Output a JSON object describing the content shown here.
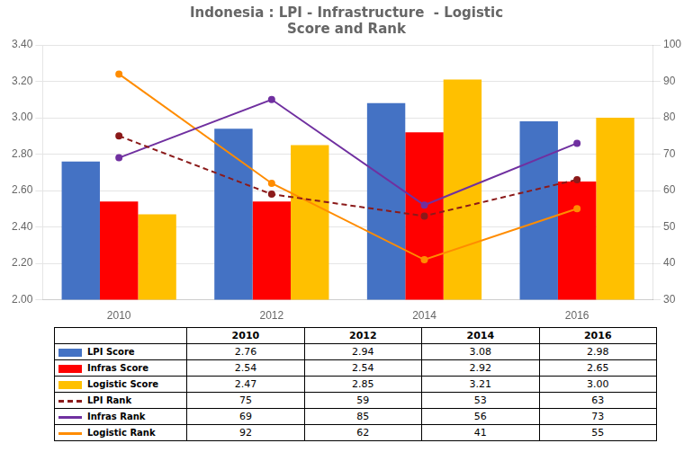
{
  "chart_data": {
    "type": "bar",
    "title": "Indonesia : LPI - Infrastructure  - Logistic\nScore and Rank",
    "categories": [
      "2010",
      "2012",
      "2014",
      "2016"
    ],
    "series": [
      {
        "name": "LPI Score",
        "type": "bar",
        "color": "#4472C4",
        "values": [
          2.76,
          2.94,
          3.08,
          2.98
        ],
        "value_labels": [
          "2.76",
          "2.94",
          "3.08",
          "2.98"
        ]
      },
      {
        "name": "Infras Score",
        "type": "bar",
        "color": "#FF0000",
        "values": [
          2.54,
          2.54,
          2.92,
          2.65
        ],
        "value_labels": [
          "2.54",
          "2.54",
          "2.92",
          "2.65"
        ]
      },
      {
        "name": "Logistic Score",
        "type": "bar",
        "color": "#FFC000",
        "values": [
          2.47,
          2.85,
          3.21,
          3.0
        ],
        "value_labels": [
          "2.47",
          "2.85",
          "3.21",
          "3.00"
        ]
      },
      {
        "name": "LPI Rank",
        "type": "line",
        "axis": "y2",
        "color": "#8B1A1A",
        "line_style": "dashed",
        "marker": "circle",
        "values": [
          75,
          59,
          53,
          63
        ],
        "value_labels": [
          "75",
          "59",
          "53",
          "63"
        ]
      },
      {
        "name": "Infras Rank",
        "type": "line",
        "axis": "y2",
        "color": "#7030A0",
        "line_style": "solid",
        "marker": "circle",
        "values": [
          69,
          85,
          56,
          73
        ],
        "value_labels": [
          "69",
          "85",
          "56",
          "73"
        ]
      },
      {
        "name": "Logistic Rank",
        "type": "line",
        "axis": "y2",
        "color": "#FF8C00",
        "line_style": "solid",
        "marker": "circle",
        "values": [
          92,
          62,
          41,
          55
        ],
        "value_labels": [
          "92",
          "62",
          "41",
          "55"
        ]
      }
    ],
    "ylim": [
      2.0,
      3.4
    ],
    "yticks": [
      {
        "value": 2.0,
        "label": "2.00"
      },
      {
        "value": 2.2,
        "label": "2.20"
      },
      {
        "value": 2.4,
        "label": "2.40"
      },
      {
        "value": 2.6,
        "label": "2.60"
      },
      {
        "value": 2.8,
        "label": "2.80"
      },
      {
        "value": 3.0,
        "label": "3.00"
      },
      {
        "value": 3.2,
        "label": "3.20"
      },
      {
        "value": 3.4,
        "label": "3.40"
      }
    ],
    "y2lim": [
      30,
      100
    ],
    "y2ticks": [
      30,
      40,
      50,
      60,
      70,
      80,
      90,
      100
    ],
    "grid": true
  }
}
